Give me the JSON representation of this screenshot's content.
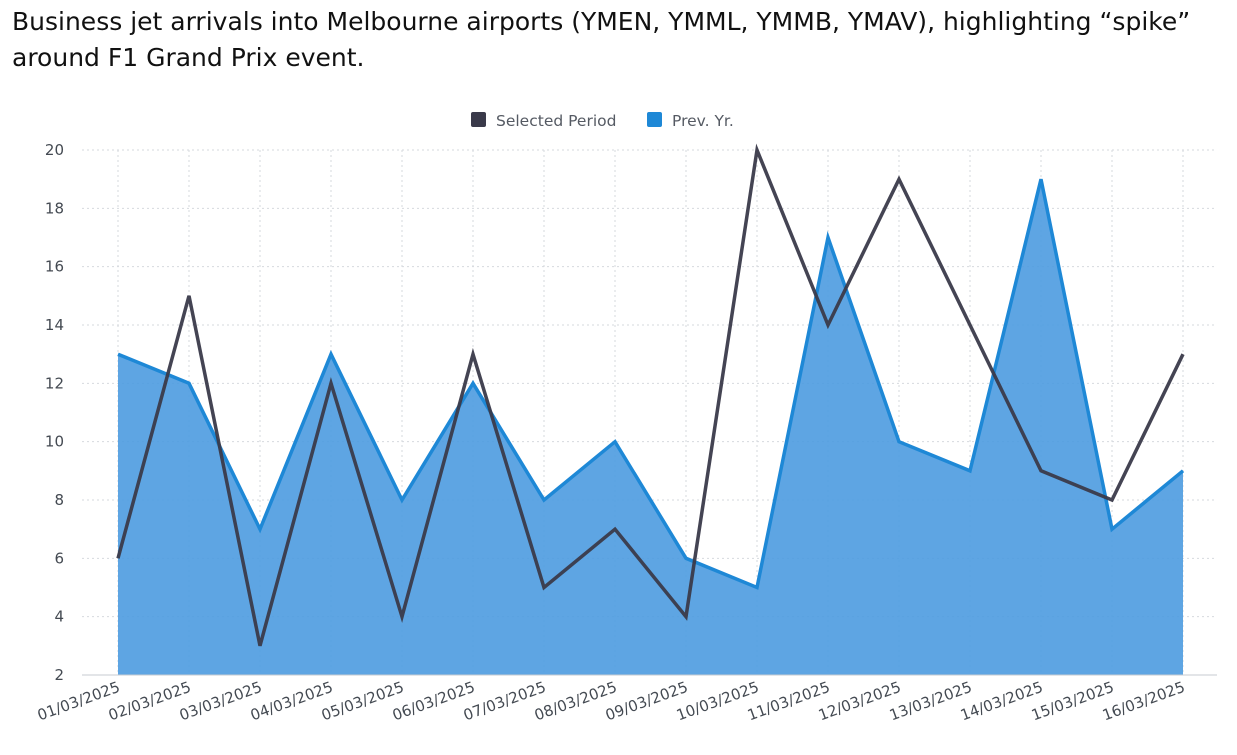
{
  "page": {
    "title": "Business jet arrivals into Melbourne airports (YMEN, YMML, YMMB, YMAV), highlighting “spike” around F1 Grand Prix event."
  },
  "chart_data": {
    "type": "area",
    "title": "Business jet arrivals into Melbourne airports (YMEN, YMML, YMMB, YMAV), highlighting “spike” around F1 Grand Prix event.",
    "xlabel": "",
    "ylabel": "",
    "categories": [
      "01/03/2025",
      "02/03/2025",
      "03/03/2025",
      "04/03/2025",
      "05/03/2025",
      "06/03/2025",
      "07/03/2025",
      "08/03/2025",
      "09/03/2025",
      "10/03/2025",
      "11/03/2025",
      "12/03/2025",
      "13/03/2025",
      "14/03/2025",
      "15/03/2025",
      "16/03/2025"
    ],
    "series": [
      {
        "name": "Selected Period",
        "type": "line",
        "color": "#3a3a4a",
        "values": [
          6,
          15,
          3,
          12,
          4,
          13,
          5,
          7,
          4,
          20,
          14,
          19,
          14,
          9,
          8,
          13
        ]
      },
      {
        "name": "Prev. Yr.",
        "type": "area",
        "color": "#1e88d6",
        "fill": "#4d9be0",
        "values": [
          13,
          12,
          7,
          13,
          8,
          12,
          8,
          10,
          6,
          5,
          17,
          10,
          9,
          19,
          7,
          9
        ]
      }
    ],
    "ylim": [
      2,
      20
    ],
    "yticks": [
      "2",
      "4",
      "6",
      "8",
      "10",
      "12",
      "14",
      "16",
      "18",
      "20"
    ],
    "grid": true,
    "legend": "top-center"
  }
}
